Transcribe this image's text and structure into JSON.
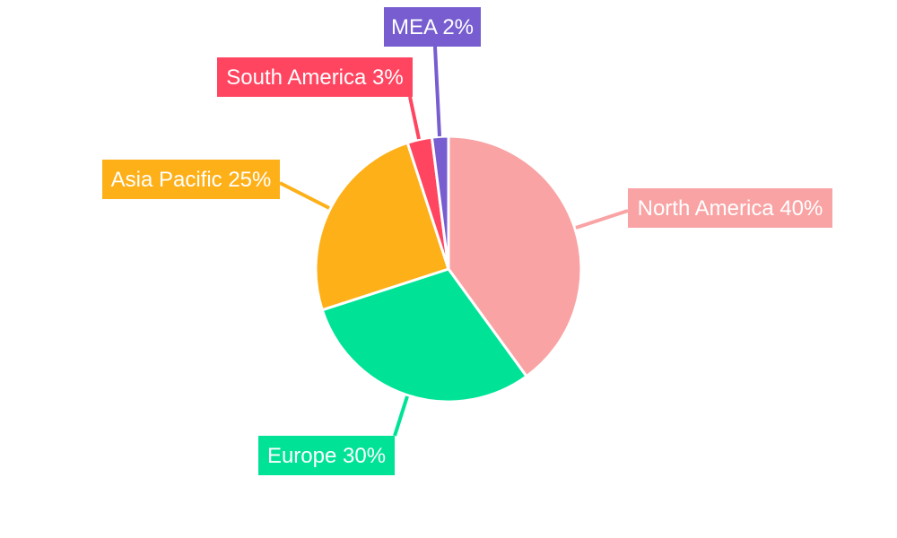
{
  "chart_data": {
    "type": "pie",
    "title": "",
    "start": "top",
    "direction": "clockwise",
    "legend": "none",
    "slices": [
      {
        "name": "North America",
        "value": 40,
        "label": "North America 40%",
        "color": "#F9A3A4"
      },
      {
        "name": "Europe",
        "value": 30,
        "label": "Europe 30%",
        "color": "#00E396"
      },
      {
        "name": "Asia Pacific",
        "value": 25,
        "label": "Asia Pacific 25%",
        "color": "#FEB019"
      },
      {
        "name": "South America",
        "value": 3,
        "label": "South America 3%",
        "color": "#FF4560"
      },
      {
        "name": "MEA",
        "value": 2,
        "label": "MEA 2%",
        "color": "#775DD0"
      }
    ]
  }
}
